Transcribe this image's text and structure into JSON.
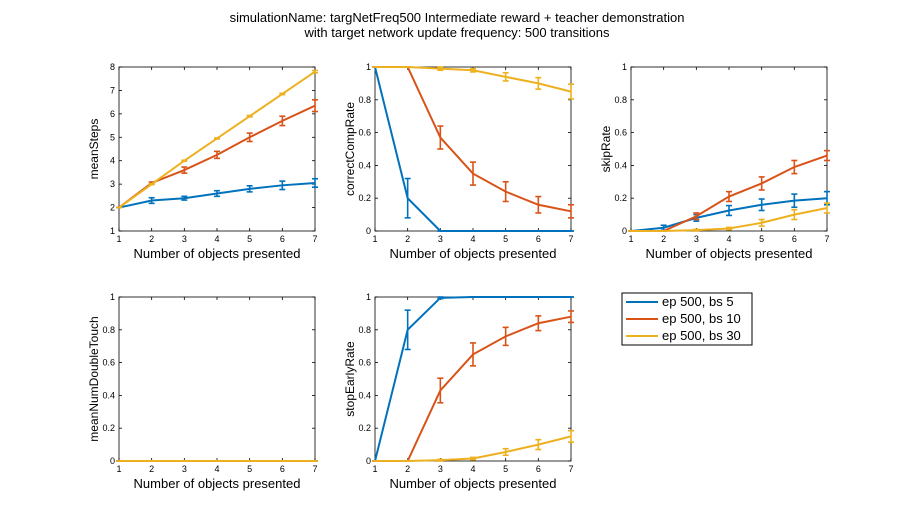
{
  "figure": {
    "title_line1": "simulationName: targNetFreq500  Intermediate reward + teacher demonstration",
    "title_line2": "with target network update frequency: 500 transitions"
  },
  "legend": {
    "items": [
      {
        "label": "ep 500, bs 5",
        "color": "#0072BD"
      },
      {
        "label": "ep 500, bs 10",
        "color": "#D95319"
      },
      {
        "label": "ep 500, bs 30",
        "color": "#EDB120"
      }
    ]
  },
  "chart_data": [
    {
      "type": "line",
      "ylabel": "meanSteps",
      "xlabel": "Number of objects presented",
      "x": [
        1,
        2,
        3,
        4,
        5,
        6,
        7
      ],
      "xlim": [
        1,
        7
      ],
      "ylim": [
        1,
        8
      ],
      "yticks": [
        "1",
        "2",
        "3",
        "4",
        "5",
        "6",
        "7",
        "8"
      ],
      "xticks": [
        "1",
        "2",
        "3",
        "4",
        "5",
        "6",
        "7"
      ],
      "series": [
        {
          "color": "#0072BD",
          "values": [
            2.0,
            2.3,
            2.4,
            2.6,
            2.8,
            2.95,
            3.05
          ],
          "err": [
            0,
            0.12,
            0.08,
            0.12,
            0.13,
            0.18,
            0.18
          ]
        },
        {
          "color": "#D95319",
          "values": [
            2.0,
            3.05,
            3.6,
            4.25,
            5.0,
            5.7,
            6.35
          ],
          "err": [
            0,
            0.04,
            0.13,
            0.15,
            0.18,
            0.2,
            0.25
          ]
        },
        {
          "color": "#EDB120",
          "values": [
            2.0,
            3.0,
            4.0,
            4.95,
            5.9,
            6.85,
            7.8
          ],
          "err": [
            0,
            0.02,
            0.02,
            0.02,
            0.03,
            0.03,
            0.05
          ]
        }
      ]
    },
    {
      "type": "line",
      "ylabel": "correctCompRate",
      "xlabel": "Number of objects presented",
      "x": [
        1,
        2,
        3,
        4,
        5,
        6,
        7
      ],
      "xlim": [
        1,
        7
      ],
      "ylim": [
        0,
        1
      ],
      "yticks": [
        "0",
        "0.2",
        "0.4",
        "0.6",
        "0.8",
        "1"
      ],
      "xticks": [
        "1",
        "2",
        "3",
        "4",
        "5",
        "6",
        "7"
      ],
      "series": [
        {
          "color": "#0072BD",
          "values": [
            1.0,
            0.2,
            0.0,
            0.0,
            0.0,
            0.0,
            0.0
          ],
          "err": [
            0,
            0.12,
            0,
            0,
            0,
            0,
            0
          ]
        },
        {
          "color": "#D95319",
          "values": [
            1.0,
            1.0,
            0.57,
            0.35,
            0.24,
            0.16,
            0.12
          ],
          "err": [
            0,
            0,
            0.07,
            0.07,
            0.06,
            0.05,
            0.04
          ]
        },
        {
          "color": "#EDB120",
          "values": [
            1.0,
            1.0,
            0.99,
            0.98,
            0.94,
            0.9,
            0.85
          ],
          "err": [
            0,
            0,
            0.01,
            0.01,
            0.025,
            0.035,
            0.045
          ]
        }
      ]
    },
    {
      "type": "line",
      "ylabel": "skipRate",
      "xlabel": "Number of objects presented",
      "x": [
        1,
        2,
        3,
        4,
        5,
        6,
        7
      ],
      "xlim": [
        1,
        7
      ],
      "ylim": [
        0,
        1
      ],
      "yticks": [
        "0",
        "0.2",
        "0.4",
        "0.6",
        "0.8",
        "1"
      ],
      "xticks": [
        "1",
        "2",
        "3",
        "4",
        "5",
        "6",
        "7"
      ],
      "series": [
        {
          "color": "#0072BD",
          "values": [
            0.0,
            0.02,
            0.08,
            0.125,
            0.16,
            0.185,
            0.2
          ],
          "err": [
            0,
            0.015,
            0.02,
            0.03,
            0.035,
            0.04,
            0.04
          ]
        },
        {
          "color": "#D95319",
          "values": [
            0.0,
            0.0,
            0.09,
            0.21,
            0.29,
            0.39,
            0.46
          ],
          "err": [
            0,
            0,
            0.02,
            0.03,
            0.04,
            0.04,
            0.03
          ]
        },
        {
          "color": "#EDB120",
          "values": [
            0.0,
            0.0,
            0.005,
            0.015,
            0.05,
            0.1,
            0.14
          ],
          "err": [
            0,
            0,
            0.005,
            0.007,
            0.02,
            0.03,
            0.03
          ]
        }
      ]
    },
    {
      "type": "line",
      "ylabel": "meanNumDoubleTouch",
      "xlabel": "Number of objects presented",
      "x": [
        1,
        2,
        3,
        4,
        5,
        6,
        7
      ],
      "xlim": [
        1,
        7
      ],
      "ylim": [
        0,
        1
      ],
      "yticks": [
        "0",
        "0.2",
        "0.4",
        "0.6",
        "0.8",
        "1"
      ],
      "xticks": [
        "1",
        "2",
        "3",
        "4",
        "5",
        "6",
        "7"
      ],
      "series": [
        {
          "color": "#0072BD",
          "values": [
            0,
            0,
            0,
            0,
            0,
            0,
            0
          ],
          "err": [
            0,
            0,
            0,
            0,
            0,
            0,
            0
          ]
        },
        {
          "color": "#D95319",
          "values": [
            0,
            0,
            0,
            0,
            0,
            0,
            0
          ],
          "err": [
            0,
            0,
            0,
            0,
            0,
            0,
            0
          ]
        },
        {
          "color": "#EDB120",
          "values": [
            0,
            0,
            0,
            0,
            0,
            0,
            0
          ],
          "err": [
            0,
            0,
            0,
            0,
            0,
            0,
            0
          ]
        }
      ]
    },
    {
      "type": "line",
      "ylabel": "stopEarlyRate",
      "xlabel": "Number of objects presented",
      "x": [
        1,
        2,
        3,
        4,
        5,
        6,
        7
      ],
      "xlim": [
        1,
        7
      ],
      "ylim": [
        0,
        1
      ],
      "yticks": [
        "0",
        "0.2",
        "0.4",
        "0.6",
        "0.8",
        "1"
      ],
      "xticks": [
        "1",
        "2",
        "3",
        "4",
        "5",
        "6",
        "7"
      ],
      "series": [
        {
          "color": "#0072BD",
          "values": [
            0.0,
            0.8,
            0.995,
            1.0,
            1.0,
            1.0,
            1.0
          ],
          "err": [
            0,
            0.12,
            0.005,
            0,
            0,
            0,
            0
          ]
        },
        {
          "color": "#D95319",
          "values": [
            0.0,
            0.0,
            0.43,
            0.65,
            0.76,
            0.84,
            0.88
          ],
          "err": [
            0,
            0,
            0.075,
            0.07,
            0.055,
            0.045,
            0.035
          ]
        },
        {
          "color": "#EDB120",
          "values": [
            0.0,
            0.0,
            0.005,
            0.015,
            0.055,
            0.1,
            0.15
          ],
          "err": [
            0,
            0,
            0.005,
            0.007,
            0.02,
            0.03,
            0.035
          ]
        }
      ]
    }
  ]
}
